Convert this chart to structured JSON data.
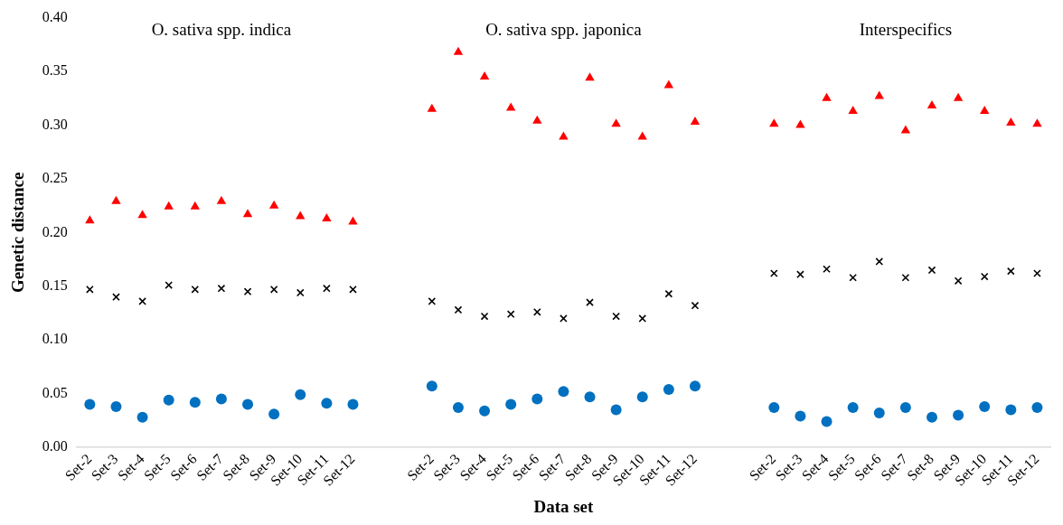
{
  "chart_data": {
    "type": "scatter",
    "xlabel": "Data set",
    "ylabel": "Genetic distance",
    "annotations": [
      "O. sativa spp. indica",
      "O. sativa spp. japonica",
      "Interspecifics"
    ],
    "categories": [
      "Set-2",
      "Set-3",
      "Set-4",
      "Set-5",
      "Set-6",
      "Set-7",
      "Set-8",
      "Set-9",
      "Set-10",
      "Set-11",
      "Set-12",
      null,
      null,
      "Set-2",
      "Set-3",
      "Set-4",
      "Set-5",
      "Set-6",
      "Set-7",
      "Set-8",
      "Set-9",
      "Set-10",
      "Set-11",
      "Set-12",
      null,
      null,
      "Set-2",
      "Set-3",
      "Set-4",
      "Set-5",
      "Set-6",
      "Set-7",
      "Set-8",
      "Set-9",
      "Set-10",
      "Set-11",
      "Set-12"
    ],
    "series": [
      {
        "color": "#ff0000",
        "marker": "triangle",
        "values": [
          0.211,
          0.229,
          0.216,
          0.224,
          0.224,
          0.229,
          0.217,
          0.225,
          0.215,
          0.213,
          0.21,
          null,
          null,
          0.315,
          0.368,
          0.345,
          0.316,
          0.304,
          0.289,
          0.344,
          0.301,
          0.289,
          0.337,
          0.303,
          null,
          null,
          0.301,
          0.3,
          0.325,
          0.313,
          0.327,
          0.295,
          0.318,
          0.325,
          0.313,
          0.302,
          0.301
        ]
      },
      {
        "color": "#000000",
        "marker": "cross",
        "values": [
          0.147,
          0.14,
          0.136,
          0.151,
          0.147,
          0.148,
          0.145,
          0.147,
          0.144,
          0.148,
          0.147,
          null,
          null,
          0.136,
          0.128,
          0.122,
          0.124,
          0.126,
          0.12,
          0.135,
          0.122,
          0.12,
          0.143,
          0.132,
          null,
          null,
          0.162,
          0.161,
          0.166,
          0.158,
          0.173,
          0.158,
          0.165,
          0.155,
          0.159,
          0.164,
          0.162
        ]
      },
      {
        "color": "#0070c0",
        "marker": "circle",
        "values": [
          0.04,
          0.038,
          0.028,
          0.044,
          0.042,
          0.045,
          0.04,
          0.031,
          0.049,
          0.041,
          0.04,
          null,
          null,
          0.057,
          0.037,
          0.034,
          0.04,
          0.045,
          0.052,
          0.047,
          0.035,
          0.047,
          0.054,
          0.057,
          null,
          null,
          0.037,
          0.029,
          0.024,
          0.037,
          0.032,
          0.037,
          0.028,
          0.03,
          0.038,
          0.035,
          0.037
        ]
      }
    ],
    "ylim": [
      0,
      0.4
    ],
    "yticks": [
      {
        "value": 0,
        "label": "0.00"
      },
      {
        "value": 0.05,
        "label": "0.05"
      },
      {
        "value": 0.1,
        "label": "0.10"
      },
      {
        "value": 0.15,
        "label": "0.15"
      },
      {
        "value": 0.2,
        "label": "0.20"
      },
      {
        "value": 0.25,
        "label": "0.25"
      },
      {
        "value": 0.3,
        "label": "0.30"
      },
      {
        "value": 0.35,
        "label": "0.35"
      },
      {
        "value": 0.4,
        "label": "0.40"
      }
    ],
    "grid": false,
    "legend": false
  }
}
